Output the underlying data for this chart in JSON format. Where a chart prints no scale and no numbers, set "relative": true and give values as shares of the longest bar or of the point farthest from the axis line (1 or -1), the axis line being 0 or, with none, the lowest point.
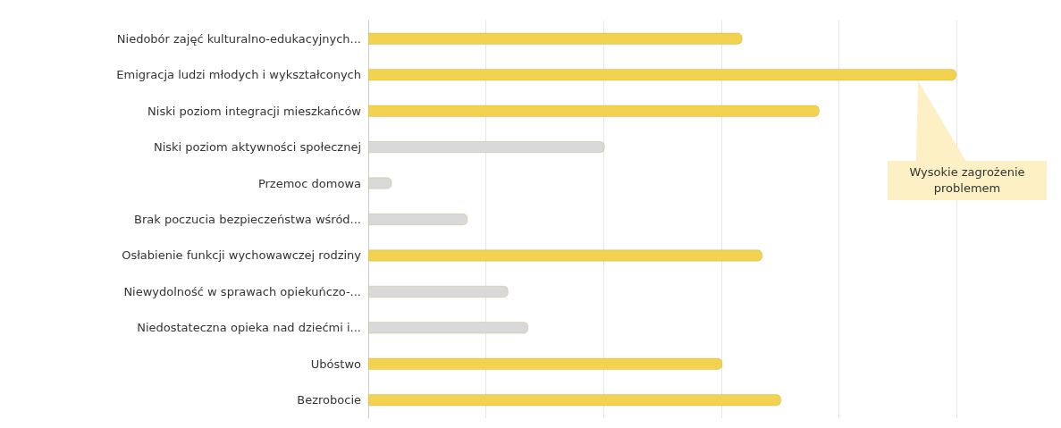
{
  "chart_data": {
    "type": "bar",
    "orientation": "horizontal",
    "relative": true,
    "grid": "x",
    "categories": [
      "Niedobór zajęć kulturalno-edukacyjnych...",
      "Emigracja ludzi młodych i wykształconych",
      "Niski poziom integracji mieszkańców",
      "Niski poziom aktywności społecznej",
      "Przemoc domowa",
      "Brak poczucia bezpieczeństwa wśród...",
      "Osłabienie funkcji wychowawczej rodziny",
      "Niewydolność w sprawach opiekuńczo-...",
      "Niedostateczna opieka nad dziećmi i...",
      "Ubóstwo",
      "Bezrobocie"
    ],
    "values": [
      0.636,
      1,
      0.767,
      0.402,
      0.04,
      0.169,
      0.67,
      0.238,
      0.272,
      0.602,
      0.702
    ],
    "colors": [
      "#f2d24e",
      "#f2d24e",
      "#f2d24e",
      "#d9d9d9",
      "#d9d9d9",
      "#d9d9d9",
      "#f2d24e",
      "#d9d9d9",
      "#d9d9d9",
      "#f2d24e",
      "#f2d24e"
    ],
    "annotations": [
      "Wysokie zagrożenie\nproblemem"
    ]
  }
}
